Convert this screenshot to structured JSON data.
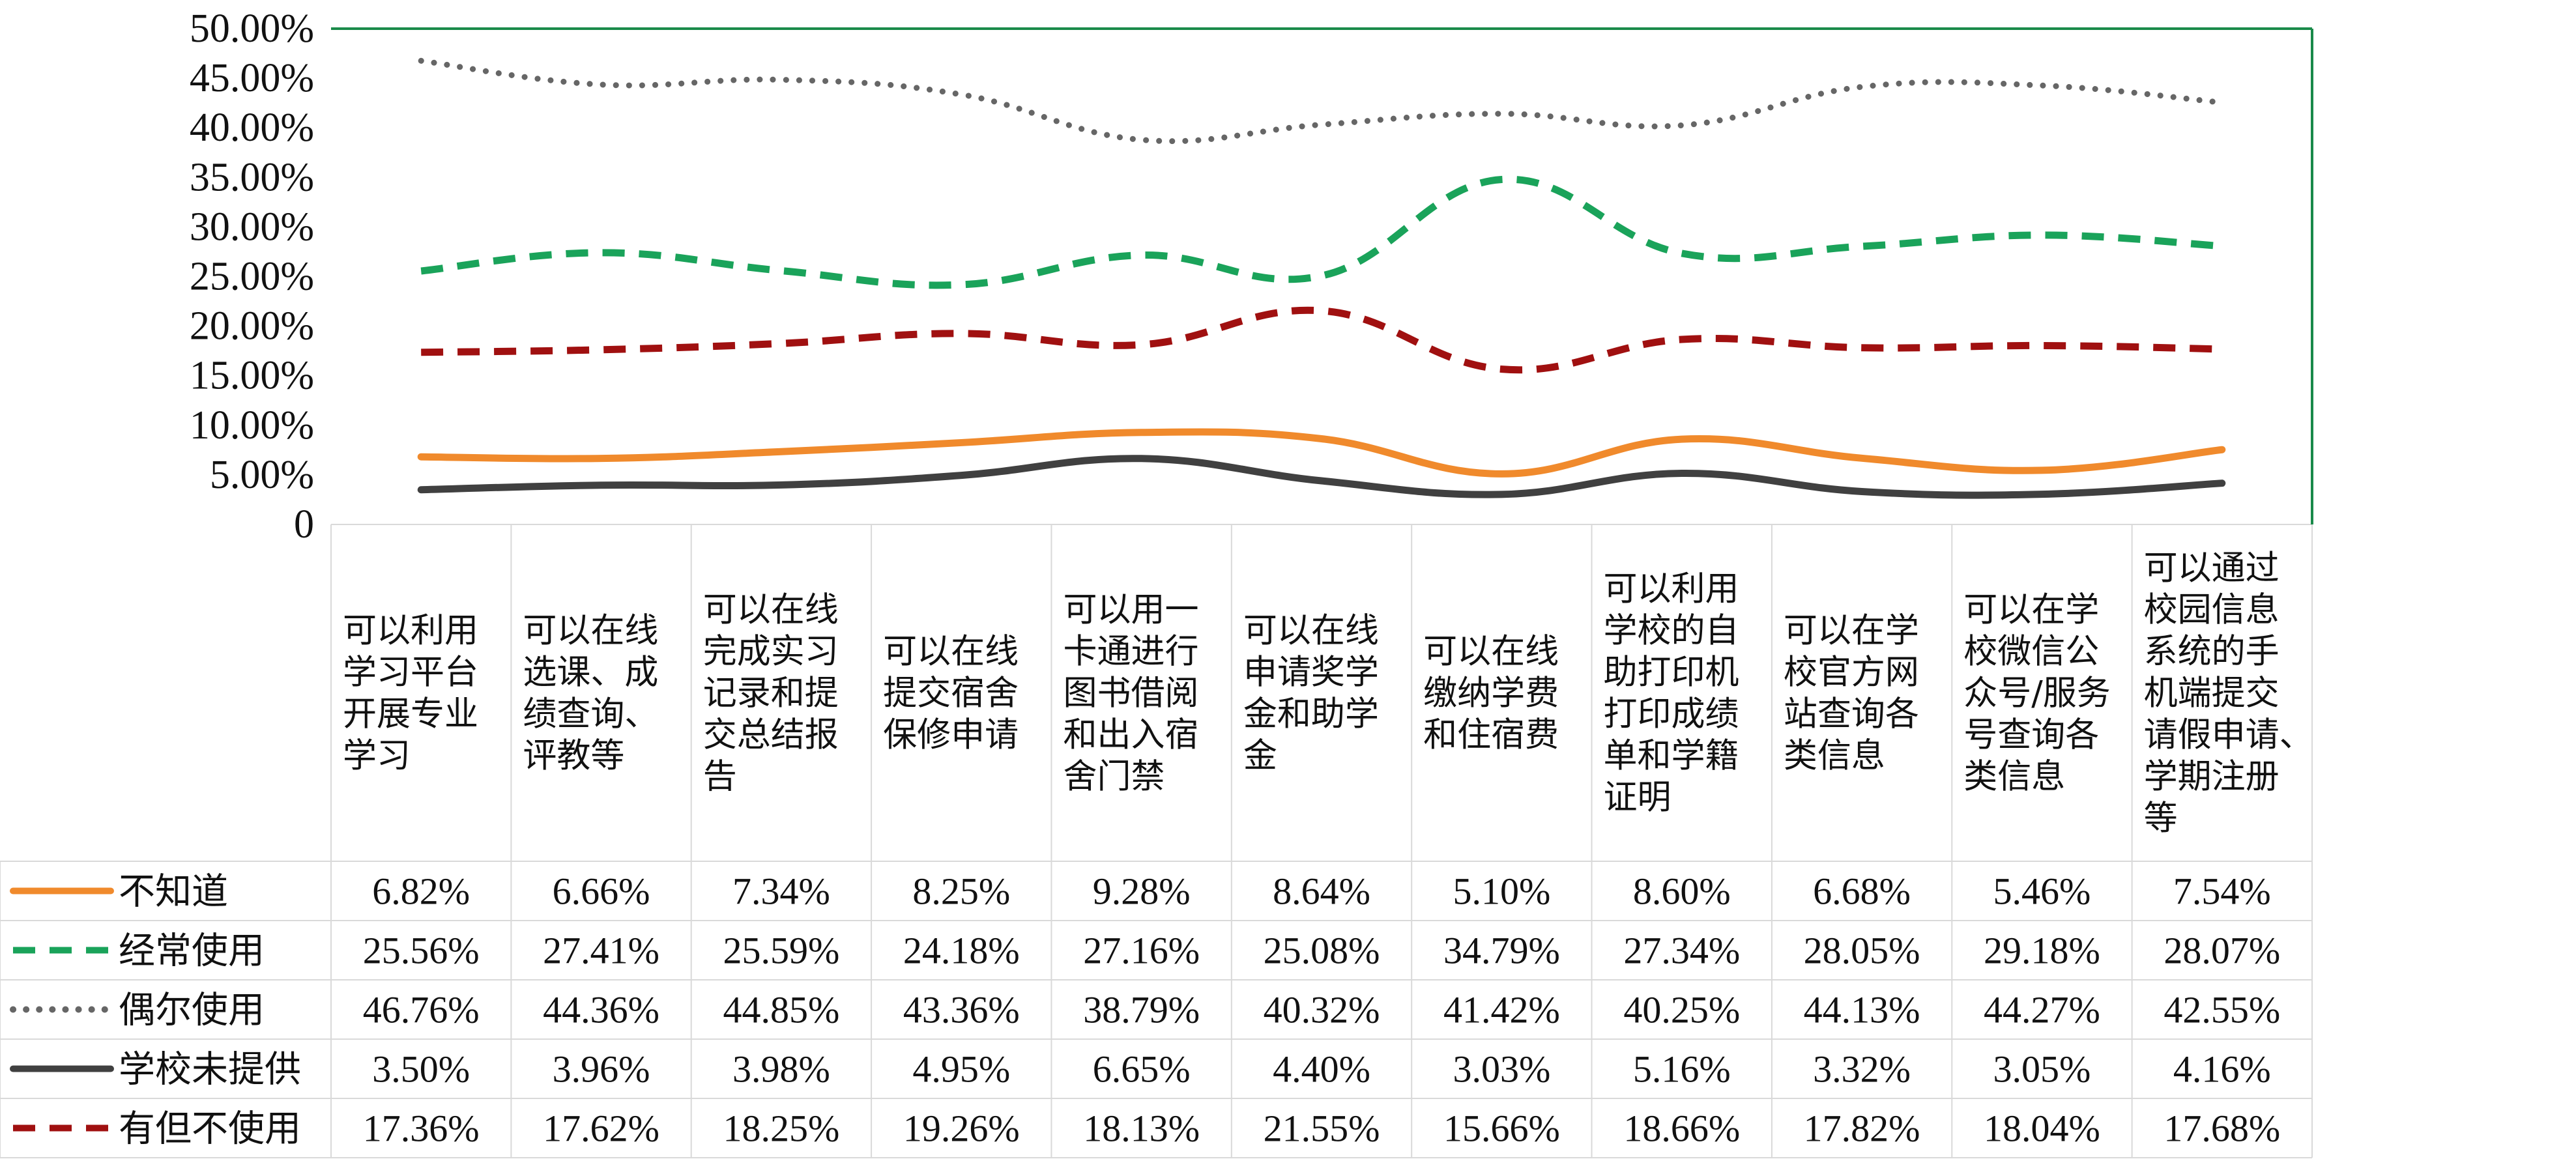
{
  "chart_data": {
    "type": "line",
    "categories": [
      "可以利用学习平台开展专业学习",
      "可以在线选课、成绩查询、评教等",
      "可以在线完成实习记录和提交总结报告",
      "可以在线提交宿舍保修申请",
      "可以用一卡通进行图书借阅和出入宿舍门禁",
      "可以在线申请奖学金和助学金",
      "可以在线缴纳学费和住宿费",
      "可以利用学校的自助打印机打印成绩单和学籍证明",
      "可以在学校官方网站查询各类信息",
      "可以在学校微信公众号/服务号查询各类信息",
      "可以通过校园信息系统的手机端提交请假申请、学期注册等"
    ],
    "category_lines": [
      [
        "可以利用",
        "学习平台",
        "开展专业",
        "学习"
      ],
      [
        "可以在线",
        "选课、成",
        "绩查询、",
        "评教等"
      ],
      [
        "可以在线",
        "完成实习",
        "记录和提",
        "交总结报",
        "告"
      ],
      [
        "可以在线",
        "提交宿舍",
        "保修申请"
      ],
      [
        "可以用一",
        "卡通进行",
        "图书借阅",
        "和出入宿",
        "舍门禁"
      ],
      [
        "可以在线",
        "申请奖学",
        "金和助学",
        "金"
      ],
      [
        "可以在线",
        "缴纳学费",
        "和住宿费"
      ],
      [
        "可以利用",
        "学校的自",
        "助打印机",
        "打印成绩",
        "单和学籍",
        "证明"
      ],
      [
        "可以在学",
        "校官方网",
        "站查询各",
        "类信息"
      ],
      [
        "可以在学",
        "校微信公",
        "众号/服务",
        "号查询各",
        "类信息"
      ],
      [
        "可以通过",
        "校园信息",
        "系统的手",
        "机端提交",
        "请假申请、",
        "学期注册",
        "等"
      ]
    ],
    "y_ticks": [
      "50.00%",
      "45.00%",
      "40.00%",
      "35.00%",
      "30.00%",
      "25.00%",
      "20.00%",
      "15.00%",
      "10.00%",
      "5.00%",
      "0"
    ],
    "ylim": [
      0,
      50
    ],
    "series": [
      {
        "name": "不知道",
        "color": "#f08a2c",
        "style": "solid",
        "values": [
          6.82,
          6.66,
          7.34,
          8.25,
          9.28,
          8.64,
          5.1,
          8.6,
          6.68,
          5.46,
          7.54
        ],
        "labels": [
          "6.82%",
          "6.66%",
          "7.34%",
          "8.25%",
          "9.28%",
          "8.64%",
          "5.10%",
          "8.60%",
          "6.68%",
          "5.46%",
          "7.54%"
        ]
      },
      {
        "name": "经常使用",
        "color": "#1aa35a",
        "style": "dashed",
        "values": [
          25.56,
          27.41,
          25.59,
          24.18,
          27.16,
          25.08,
          34.79,
          27.34,
          28.05,
          29.18,
          28.07
        ],
        "labels": [
          "25.56%",
          "27.41%",
          "25.59%",
          "24.18%",
          "27.16%",
          "25.08%",
          "34.79%",
          "27.34%",
          "28.05%",
          "29.18%",
          "28.07%"
        ]
      },
      {
        "name": "偶尔使用",
        "color": "#666666",
        "style": "dotted",
        "values": [
          46.76,
          44.36,
          44.85,
          43.36,
          38.79,
          40.32,
          41.42,
          40.25,
          44.13,
          44.27,
          42.55
        ],
        "labels": [
          "46.76%",
          "44.36%",
          "44.85%",
          "43.36%",
          "38.79%",
          "40.32%",
          "41.42%",
          "40.25%",
          "44.13%",
          "44.27%",
          "42.55%"
        ]
      },
      {
        "name": "学校未提供",
        "color": "#404040",
        "style": "solid",
        "values": [
          3.5,
          3.96,
          3.98,
          4.95,
          6.65,
          4.4,
          3.03,
          5.16,
          3.32,
          3.05,
          4.16
        ],
        "labels": [
          "3.50%",
          "3.96%",
          "3.98%",
          "4.95%",
          "6.65%",
          "4.40%",
          "3.03%",
          "5.16%",
          "3.32%",
          "3.05%",
          "4.16%"
        ]
      },
      {
        "name": "有但不使用",
        "color": "#a01010",
        "style": "dashed",
        "values": [
          17.36,
          17.62,
          18.25,
          19.26,
          18.13,
          21.55,
          15.66,
          18.66,
          17.82,
          18.04,
          17.68
        ],
        "labels": [
          "17.36%",
          "17.62%",
          "18.25%",
          "19.26%",
          "18.13%",
          "21.55%",
          "15.66%",
          "18.66%",
          "17.82%",
          "18.04%",
          "17.68%"
        ]
      }
    ],
    "frame_color": "#1a8a4a",
    "grid": false,
    "legend": "data-table-left"
  }
}
